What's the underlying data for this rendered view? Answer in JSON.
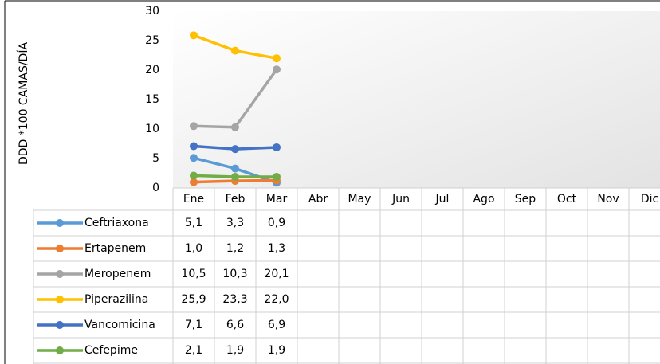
{
  "chart_data": {
    "type": "line",
    "y_label": "DDD *100 CAMAS/DÍA",
    "categories": [
      "Ene",
      "Feb",
      "Mar",
      "Abr",
      "May",
      "Jun",
      "Jul",
      "Ago",
      "Sep",
      "Oct",
      "Nov",
      "Dic"
    ],
    "series": [
      {
        "name": "Ceftriaxona",
        "color": "#5b9bd5",
        "values": [
          5.1,
          3.3,
          0.9,
          null,
          null,
          null,
          null,
          null,
          null,
          null,
          null,
          null
        ],
        "value_labels": [
          "5,1",
          "3,3",
          "0,9",
          null,
          null,
          null,
          null,
          null,
          null,
          null,
          null,
          null
        ]
      },
      {
        "name": "Ertapenem",
        "color": "#ed7d31",
        "values": [
          1.0,
          1.2,
          1.3,
          null,
          null,
          null,
          null,
          null,
          null,
          null,
          null,
          null
        ],
        "value_labels": [
          "1,0",
          "1,2",
          "1,3",
          null,
          null,
          null,
          null,
          null,
          null,
          null,
          null,
          null
        ]
      },
      {
        "name": "Meropenem",
        "color": "#a5a5a5",
        "values": [
          10.5,
          10.3,
          20.1,
          null,
          null,
          null,
          null,
          null,
          null,
          null,
          null,
          null
        ],
        "value_labels": [
          "10,5",
          "10,3",
          "20,1",
          null,
          null,
          null,
          null,
          null,
          null,
          null,
          null,
          null
        ]
      },
      {
        "name": "Piperazilina",
        "color": "#ffc000",
        "values": [
          25.9,
          23.3,
          22.0,
          null,
          null,
          null,
          null,
          null,
          null,
          null,
          null,
          null
        ],
        "value_labels": [
          "25,9",
          "23,3",
          "22,0",
          null,
          null,
          null,
          null,
          null,
          null,
          null,
          null,
          null
        ]
      },
      {
        "name": "Vancomicina",
        "color": "#4472c4",
        "values": [
          7.1,
          6.6,
          6.9,
          null,
          null,
          null,
          null,
          null,
          null,
          null,
          null,
          null
        ],
        "value_labels": [
          "7,1",
          "6,6",
          "6,9",
          null,
          null,
          null,
          null,
          null,
          null,
          null,
          null,
          null
        ]
      },
      {
        "name": "Cefepime",
        "color": "#70ad47",
        "values": [
          2.1,
          1.9,
          1.9,
          null,
          null,
          null,
          null,
          null,
          null,
          null,
          null,
          null
        ],
        "value_labels": [
          "2,1",
          "1,9",
          "1,9",
          null,
          null,
          null,
          null,
          null,
          null,
          null,
          null,
          null
        ]
      }
    ],
    "ylim": [
      0,
      30
    ],
    "yticks": [
      0,
      5,
      10,
      15,
      20,
      25,
      30
    ]
  }
}
